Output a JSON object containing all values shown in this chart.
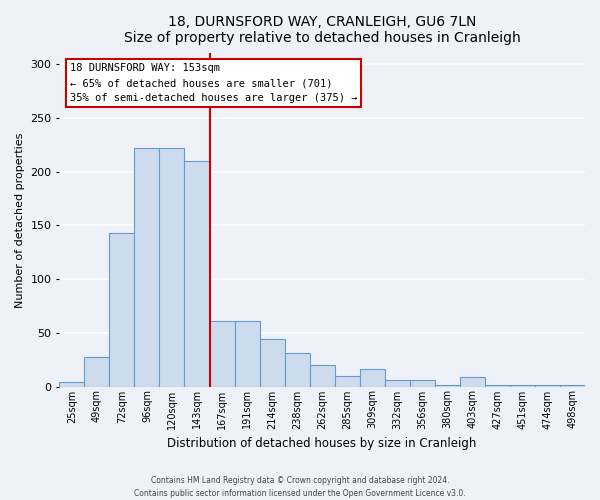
{
  "title": "18, DURNSFORD WAY, CRANLEIGH, GU6 7LN",
  "subtitle": "Size of property relative to detached houses in Cranleigh",
  "xlabel": "Distribution of detached houses by size in Cranleigh",
  "ylabel": "Number of detached properties",
  "bar_labels": [
    "25sqm",
    "49sqm",
    "72sqm",
    "96sqm",
    "120sqm",
    "143sqm",
    "167sqm",
    "191sqm",
    "214sqm",
    "238sqm",
    "262sqm",
    "285sqm",
    "309sqm",
    "332sqm",
    "356sqm",
    "380sqm",
    "403sqm",
    "427sqm",
    "451sqm",
    "474sqm",
    "498sqm"
  ],
  "bar_values": [
    4,
    27,
    143,
    222,
    222,
    210,
    61,
    61,
    44,
    31,
    20,
    10,
    16,
    6,
    6,
    1,
    9,
    1,
    1,
    1,
    1
  ],
  "bar_color": "#ccdcee",
  "bar_edge_color": "#6699cc",
  "vline_x": 5.5,
  "vline_color": "#cc0000",
  "annotation_title": "18 DURNSFORD WAY: 153sqm",
  "annotation_line1": "← 65% of detached houses are smaller (701)",
  "annotation_line2": "35% of semi-detached houses are larger (375) →",
  "annotation_box_edge_color": "#cc0000",
  "ylim": [
    0,
    310
  ],
  "yticks": [
    0,
    50,
    100,
    150,
    200,
    250,
    300
  ],
  "footer1": "Contains HM Land Registry data © Crown copyright and database right 2024.",
  "footer2": "Contains public sector information licensed under the Open Government Licence v3.0.",
  "bg_color": "#eef2f8",
  "grid_color": "#ffffff"
}
